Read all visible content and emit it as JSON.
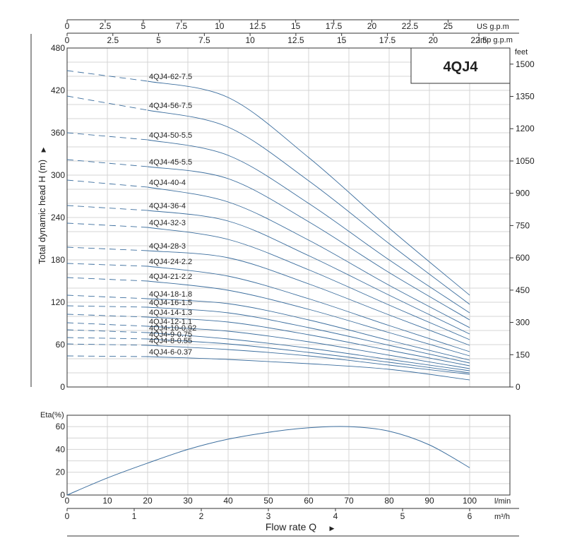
{
  "title_box": "4QJ4",
  "chart_data": [
    {
      "type": "line",
      "name": "head-chart",
      "xlabel": "",
      "ylabel": "Total dynamic head H (m)",
      "y2label": "feet",
      "xlim": [
        0,
        110
      ],
      "ylim": [
        0,
        480
      ],
      "y_ticks": [
        "0",
        "60",
        "120",
        "180",
        "240",
        "300",
        "360",
        "420",
        "480"
      ],
      "feet_ticks": [
        "0",
        "150",
        "300",
        "450",
        "600",
        "750",
        "900",
        "1050",
        "1200",
        "1350",
        "1500"
      ],
      "us_gpm_label": "US g.p.m",
      "us_gpm_ticks": [
        "0",
        "2.5",
        "5",
        "7.5",
        "10",
        "12.5",
        "15",
        "17.5",
        "20",
        "22.5",
        "25"
      ],
      "imp_gpm_label": "Imp g.p.m",
      "imp_gpm_ticks": [
        "0",
        "2.5",
        "5",
        "7.5",
        "10",
        "12.5",
        "15",
        "17.5",
        "20",
        "22.5"
      ],
      "grid": true,
      "dashed_range": [
        0,
        20
      ],
      "solid_range": [
        20,
        100
      ],
      "series": [
        {
          "name": "4QJ4-62-7.5",
          "x": [
            0,
            20,
            40,
            60,
            80,
            100
          ],
          "y": [
            448,
            433,
            410,
            325,
            225,
            130
          ]
        },
        {
          "name": "4QJ4-56-7.5",
          "x": [
            0,
            20,
            40,
            60,
            80,
            100
          ],
          "y": [
            412,
            392,
            368,
            292,
            203,
            117
          ]
        },
        {
          "name": "4QJ4-50-5.5",
          "x": [
            0,
            20,
            40,
            60,
            80,
            100
          ],
          "y": [
            360,
            350,
            328,
            260,
            180,
            105
          ]
        },
        {
          "name": "4QJ4-45-5.5",
          "x": [
            0,
            20,
            40,
            60,
            80,
            100
          ],
          "y": [
            322,
            312,
            295,
            234,
            162,
            95
          ]
        },
        {
          "name": "4QJ4-40-4",
          "x": [
            0,
            20,
            40,
            60,
            80,
            100
          ],
          "y": [
            293,
            283,
            262,
            208,
            144,
            84
          ]
        },
        {
          "name": "4QJ4-36-4",
          "x": [
            0,
            20,
            40,
            60,
            80,
            100
          ],
          "y": [
            257,
            250,
            235,
            186,
            130,
            75
          ]
        },
        {
          "name": "4QJ4-32-3",
          "x": [
            0,
            20,
            40,
            60,
            80,
            100
          ],
          "y": [
            232,
            226,
            209,
            166,
            116,
            67
          ]
        },
        {
          "name": "4QJ4-28-3",
          "x": [
            0,
            20,
            40,
            60,
            80,
            100
          ],
          "y": [
            198,
            193,
            183,
            146,
            102,
            59
          ]
        },
        {
          "name": "4QJ4-24-2.2",
          "x": [
            0,
            20,
            40,
            60,
            80,
            100
          ],
          "y": [
            175,
            171,
            157,
            125,
            87,
            50
          ]
        },
        {
          "name": "4QJ4-21-2.2",
          "x": [
            0,
            20,
            40,
            60,
            80,
            100
          ],
          "y": [
            155,
            150,
            137,
            110,
            77,
            44
          ]
        },
        {
          "name": "4QJ4-18-1.8",
          "x": [
            0,
            20,
            40,
            60,
            80,
            100
          ],
          "y": [
            130,
            125,
            118,
            95,
            66,
            38
          ]
        },
        {
          "name": "4QJ4-16-1.5",
          "x": [
            0,
            20,
            40,
            60,
            80,
            100
          ],
          "y": [
            115,
            113,
            105,
            84,
            59,
            34
          ]
        },
        {
          "name": "4QJ4-14-1.3",
          "x": [
            0,
            20,
            40,
            60,
            80,
            100
          ],
          "y": [
            103,
            99,
            92,
            74,
            52,
            30
          ]
        },
        {
          "name": "4QJ4-12-1.1",
          "x": [
            0,
            20,
            40,
            60,
            80,
            100
          ],
          "y": [
            91,
            86,
            79,
            64,
            45,
            26
          ]
        },
        {
          "name": "4QJ4-10-0.92",
          "x": [
            0,
            20,
            40,
            60,
            80,
            100
          ],
          "y": [
            81,
            77,
            68,
            55,
            39,
            23
          ]
        },
        {
          "name": "4QJ4-9-0.75",
          "x": [
            0,
            20,
            40,
            60,
            80,
            100
          ],
          "y": [
            70,
            68,
            61,
            49,
            35,
            20
          ]
        },
        {
          "name": "4QJ4-8-0.55",
          "x": [
            0,
            20,
            40,
            60,
            80,
            100
          ],
          "y": [
            61,
            59,
            53,
            44,
            31,
            18
          ]
        },
        {
          "name": "4QJ4-6-0.37",
          "x": [
            0,
            20,
            40,
            60,
            80,
            100
          ],
          "y": [
            44,
            43,
            39,
            33,
            25,
            10
          ]
        }
      ]
    },
    {
      "type": "line",
      "name": "efficiency-chart",
      "ylabel": "Eta(%)",
      "xlabel": "Flow rate Q",
      "xlim": [
        0,
        110
      ],
      "ylim": [
        0,
        70
      ],
      "y_ticks": [
        "0",
        "20",
        "40",
        "60"
      ],
      "lmin_label": "l/min",
      "lmin_ticks": [
        "0",
        "10",
        "20",
        "30",
        "40",
        "50",
        "60",
        "70",
        "80",
        "90",
        "100"
      ],
      "m3h_label": "m³/h",
      "m3h_ticks": [
        "0",
        "1",
        "2",
        "3",
        "4",
        "5",
        "6"
      ],
      "grid": true,
      "series": [
        {
          "x": [
            0,
            10,
            20,
            30,
            40,
            50,
            60,
            70,
            80,
            90,
            100
          ],
          "y": [
            0,
            15,
            28,
            40,
            49,
            55,
            59,
            60,
            56,
            44,
            24
          ]
        }
      ]
    }
  ]
}
